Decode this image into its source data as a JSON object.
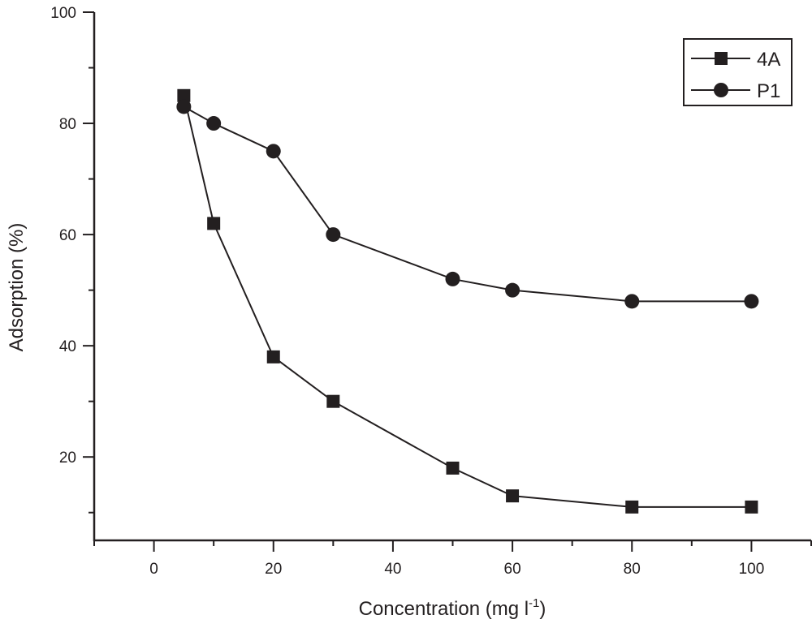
{
  "chart_data": {
    "type": "line",
    "title": "",
    "xlabel": "Concentration (mg l",
    "xlabel_superscript": "-1",
    "xlabel_suffix": ")",
    "ylabel": "Adsorption (%)",
    "xlim": [
      -10,
      110
    ],
    "ylim": [
      5,
      100
    ],
    "x_ticks": [
      "0",
      "20",
      "40",
      "60",
      "80",
      "100"
    ],
    "y_ticks": [
      "20",
      "40",
      "60",
      "80",
      "100"
    ],
    "grid": false,
    "legend_position": "top-right",
    "color": "#231f20",
    "series": [
      {
        "name": "4A",
        "marker": "square",
        "x": [
          5,
          10,
          20,
          30,
          50,
          60,
          80,
          100
        ],
        "values": [
          85,
          62,
          38,
          30,
          18,
          13,
          11,
          11
        ]
      },
      {
        "name": "P1",
        "marker": "circle",
        "x": [
          5,
          10,
          20,
          30,
          50,
          60,
          80,
          100
        ],
        "values": [
          83,
          80,
          75,
          60,
          52,
          50,
          48,
          48
        ]
      }
    ]
  }
}
